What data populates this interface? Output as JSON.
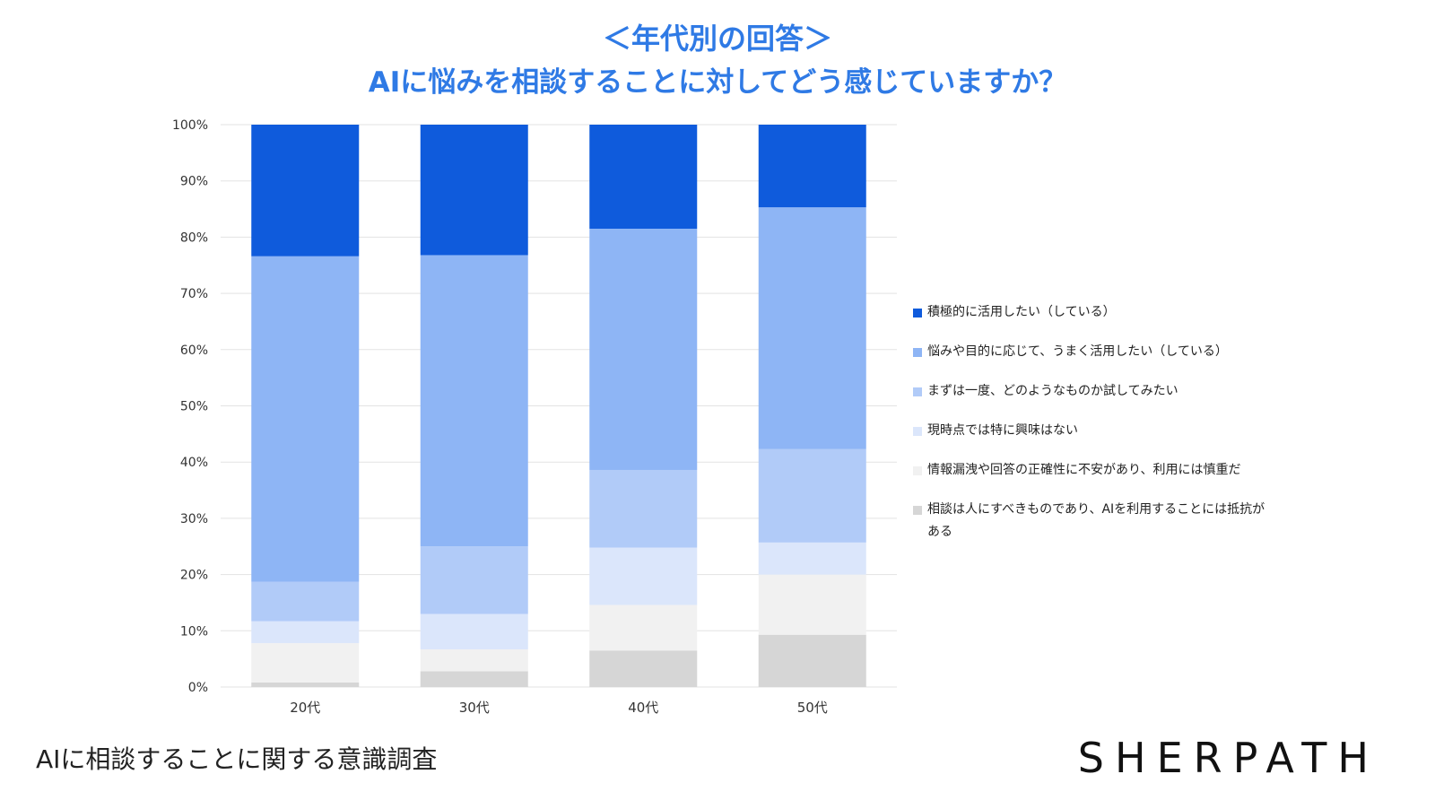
{
  "header": {
    "title_line1": "＜年代別の回答＞",
    "title_line2": "AIに悩みを相談することに対してどう感じていますか？"
  },
  "footer": {
    "caption": "AIに相談することに関する意識調査",
    "brand": "SHERPATH"
  },
  "chart_data": {
    "type": "bar",
    "stacked": true,
    "normalized": true,
    "categories": [
      "20代",
      "30代",
      "40代",
      "50代"
    ],
    "yticks": [
      "0%",
      "10%",
      "20%",
      "30%",
      "40%",
      "50%",
      "60%",
      "70%",
      "80%",
      "90%",
      "100%"
    ],
    "ylim": [
      0,
      100
    ],
    "grid": true,
    "legend_position": "right",
    "series": [
      {
        "name": "相談は人にすべきものであり、AIを利用することには抵抗がある",
        "color": "#d6d6d6",
        "values": [
          0.8,
          2.8,
          6.5,
          9.3
        ]
      },
      {
        "name": "情報漏洩や回答の正確性に不安があり、利用には慎重だ",
        "color": "#f1f1f1",
        "values": [
          7.0,
          3.9,
          8.1,
          10.7
        ]
      },
      {
        "name": "現時点では特に興味はない",
        "color": "#dbe6fb",
        "values": [
          3.9,
          6.3,
          10.2,
          5.7
        ]
      },
      {
        "name": "まずは一度、どのようなものか試してみたい",
        "color": "#b1cbf8",
        "values": [
          7.0,
          12.0,
          13.8,
          16.6
        ]
      },
      {
        "name": "悩みや目的に応じて、うまく活用したい（している）",
        "color": "#8eb5f5",
        "values": [
          57.9,
          51.8,
          42.9,
          43.0
        ]
      },
      {
        "name": "積極的に活用したい（している）",
        "color": "#0f5bdc",
        "values": [
          23.4,
          23.2,
          18.5,
          14.7
        ]
      }
    ],
    "legend_order": [
      "積極的に活用したい（している）",
      "悩みや目的に応じて、うまく活用したい（している）",
      "まずは一度、どのようなものか試してみたい",
      "現時点では特に興味はない",
      "情報漏洩や回答の正確性に不安があり、利用には慎重だ",
      "相談は人にすべきものであり、AIを利用することには抵抗がある"
    ]
  }
}
